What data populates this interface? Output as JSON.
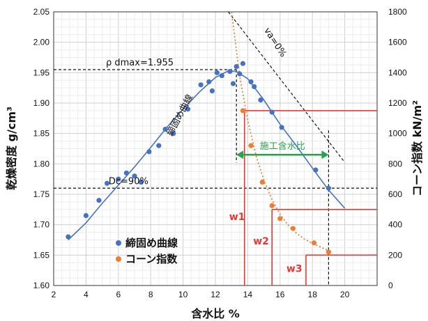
{
  "chart_data": {
    "type": "scatter",
    "xlabel": "含水比 %",
    "ylabel_left": "乾燥密度 g/cm³",
    "ylabel_right": "コーン指数 kN/m²",
    "xlim": [
      2,
      22
    ],
    "ylim_left": [
      1.6,
      2.05
    ],
    "ylim_right": [
      0,
      1800
    ],
    "x_ticks": [
      2,
      4,
      6,
      8,
      10,
      12,
      14,
      16,
      18,
      20
    ],
    "y_ticks_left": [
      "1.60",
      "1.65",
      "1.70",
      "1.75",
      "1.80",
      "1.85",
      "1.90",
      "1.95",
      "2.00",
      "2.05"
    ],
    "y_ticks_right": [
      0,
      200,
      400,
      600,
      800,
      1000,
      1200,
      1400,
      1600,
      1800
    ],
    "grid": true,
    "legend_position": "bottom-left",
    "series": [
      {
        "name": "締固め曲線",
        "axis": "left",
        "color": "#4472c4",
        "points": [
          [
            2.9,
            1.68
          ],
          [
            4.0,
            1.715
          ],
          [
            4.8,
            1.74
          ],
          [
            5.3,
            1.768
          ],
          [
            6.0,
            1.775
          ],
          [
            6.5,
            1.785
          ],
          [
            7.0,
            1.78
          ],
          [
            7.4,
            1.77
          ],
          [
            7.9,
            1.82
          ],
          [
            8.5,
            1.83
          ],
          [
            8.9,
            1.857
          ],
          [
            9.4,
            1.85
          ],
          [
            10.3,
            1.89
          ],
          [
            11.1,
            1.93
          ],
          [
            11.6,
            1.935
          ],
          [
            11.8,
            1.92
          ],
          [
            12.1,
            1.95
          ],
          [
            12.4,
            1.945
          ],
          [
            12.9,
            1.952
          ],
          [
            13.1,
            1.932
          ],
          [
            13.3,
            1.96
          ],
          [
            13.5,
            1.948
          ],
          [
            13.7,
            1.965
          ],
          [
            14.2,
            1.935
          ],
          [
            14.4,
            1.927
          ],
          [
            14.8,
            1.905
          ],
          [
            15.5,
            1.885
          ],
          [
            16.1,
            1.86
          ],
          [
            18.2,
            1.79
          ],
          [
            19.0,
            1.76
          ]
        ]
      },
      {
        "name": "締固め曲線_fit",
        "axis": "left",
        "color": "#4472c4",
        "points": [
          [
            2.9,
            1.675
          ],
          [
            4,
            1.703
          ],
          [
            5,
            1.735
          ],
          [
            6,
            1.765
          ],
          [
            7,
            1.795
          ],
          [
            8,
            1.827
          ],
          [
            9,
            1.86
          ],
          [
            10,
            1.89
          ],
          [
            11,
            1.918
          ],
          [
            12,
            1.942
          ],
          [
            12.8,
            1.953
          ],
          [
            13.3,
            1.952
          ],
          [
            14,
            1.94
          ],
          [
            15,
            1.905
          ],
          [
            16,
            1.865
          ],
          [
            17,
            1.83
          ],
          [
            18,
            1.793
          ],
          [
            19,
            1.757
          ],
          [
            20,
            1.727
          ]
        ]
      },
      {
        "name": "コーン指数",
        "axis": "right",
        "color": "#ed7d31",
        "points": [
          [
            13.7,
            1150
          ],
          [
            14.2,
            920
          ],
          [
            14.9,
            680
          ],
          [
            15.5,
            525
          ],
          [
            16.0,
            440
          ],
          [
            16.8,
            375
          ],
          [
            18.1,
            280
          ],
          [
            19.0,
            220
          ]
        ]
      },
      {
        "name": "コーン指数_fit",
        "axis": "right",
        "color": "#ed7d31",
        "points": [
          [
            13.0,
            1800
          ],
          [
            13.5,
            1380
          ],
          [
            14.0,
            1085
          ],
          [
            14.5,
            860
          ],
          [
            15.0,
            692
          ],
          [
            15.5,
            565
          ],
          [
            16.0,
            468
          ],
          [
            16.5,
            397
          ],
          [
            17.0,
            345
          ],
          [
            17.5,
            305
          ],
          [
            18.0,
            277
          ],
          [
            18.5,
            252
          ],
          [
            19.1,
            225
          ]
        ]
      }
    ],
    "annotations": {
      "rho_dmax": {
        "text": "ρ dmax=1.955",
        "value": 1.955,
        "x": 13.3
      },
      "dc90": {
        "text": "Dc=90%",
        "value": 1.76
      },
      "va0": {
        "text": "va=0%",
        "from": [
          12.8,
          1800
        ],
        "to": [
          20.0,
          810
        ]
      },
      "curve_label": "締固め曲線",
      "range": {
        "text": "施工含水比",
        "x_from": 13.3,
        "x_to": 19.0
      },
      "w_levels": [
        {
          "label": "w1",
          "x": 13.8,
          "cone": 1150
        },
        {
          "label": "w2",
          "x": 15.5,
          "cone": 500
        },
        {
          "label": "w3",
          "x": 17.6,
          "cone": 200
        }
      ]
    }
  }
}
